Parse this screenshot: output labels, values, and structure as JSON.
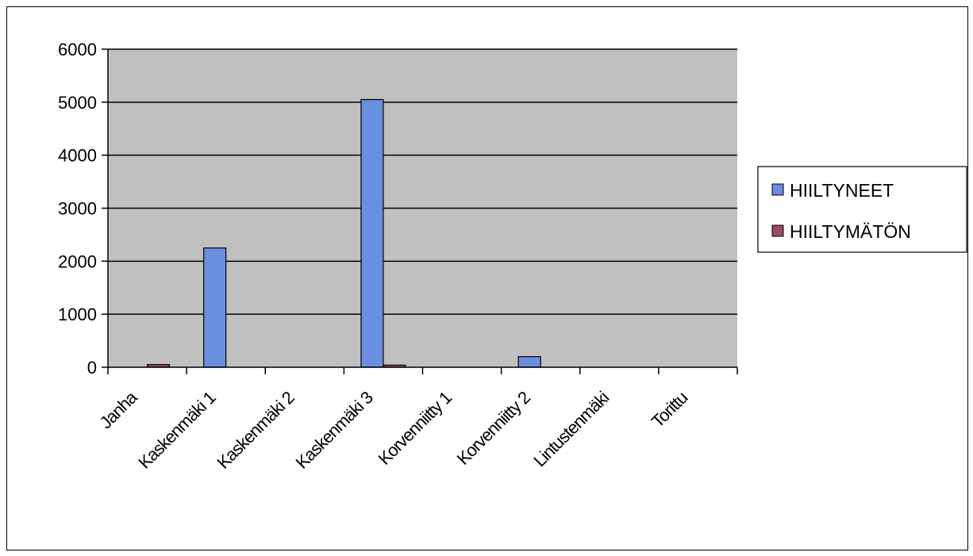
{
  "chart_data": {
    "type": "bar",
    "categories": [
      "Janha",
      "Kaskenmäki 1",
      "Kaskenmäki 2",
      "Kaskenmäki 3",
      "Korvenniitty 1",
      "Korvenniitty 2",
      "Lintustenmäki",
      "Torittu"
    ],
    "series": [
      {
        "name": "HIILTYNEET",
        "color": "#6b8fe0",
        "values": [
          0,
          2250,
          0,
          5050,
          0,
          200,
          0,
          0
        ]
      },
      {
        "name": "HIILTYMÄTÖN",
        "color": "#9e4a66",
        "values": [
          50,
          0,
          0,
          40,
          0,
          0,
          0,
          0
        ]
      }
    ],
    "yticks": [
      0,
      1000,
      2000,
      3000,
      4000,
      5000,
      6000
    ],
    "ylim": [
      0,
      6000
    ],
    "grid": true,
    "plot_background": "#c0c0c0",
    "legend_position": "right",
    "title": "",
    "xlabel": "",
    "ylabel": ""
  }
}
